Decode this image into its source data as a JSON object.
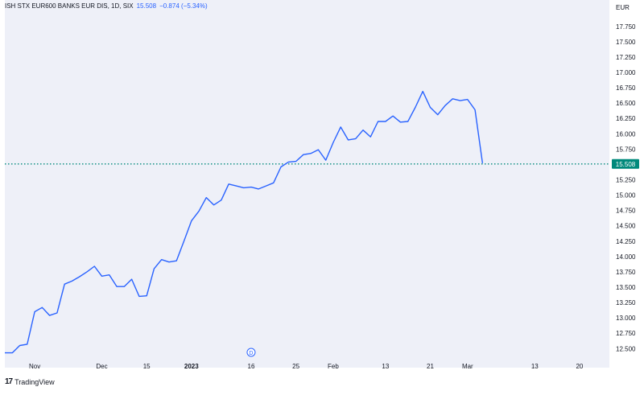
{
  "header": {
    "symbol": "ISH STX EUR600 BANKS EUR DIS, 1D, SIX",
    "last": "15.508",
    "change": "−0.874 (−5.34%)"
  },
  "currency": "EUR",
  "brand": "TradingView",
  "event_marker": "D",
  "colors": {
    "line": "#2962ff",
    "last_price_line": "#00897b",
    "last_price_badge": "#00897b",
    "plot_background": "#eef0f8",
    "axis_text": "#131722"
  },
  "chart_data": {
    "type": "line",
    "title": "ISH STX EUR600 BANKS EUR DIS, 1D, SIX",
    "ylabel": "EUR",
    "xlabel": "",
    "ylim": [
      12.32,
      17.97
    ],
    "grid": false,
    "y_ticks": [
      "12.500",
      "12.750",
      "13.000",
      "13.250",
      "13.500",
      "13.750",
      "14.000",
      "14.250",
      "14.500",
      "14.750",
      "15.000",
      "15.250",
      "15.500",
      "15.750",
      "16.000",
      "16.250",
      "16.500",
      "16.750",
      "17.000",
      "17.250",
      "17.500",
      "17.750"
    ],
    "x_ticks": [
      {
        "label": "Nov",
        "t": 4
      },
      {
        "label": "Dec",
        "t": 13
      },
      {
        "label": "15",
        "t": 19
      },
      {
        "label": "2023",
        "t": 25
      },
      {
        "label": "16",
        "t": 33
      },
      {
        "label": "25",
        "t": 39
      },
      {
        "label": "Feb",
        "t": 44
      },
      {
        "label": "13",
        "t": 51
      },
      {
        "label": "21",
        "t": 57
      },
      {
        "label": "Mar",
        "t": 62
      },
      {
        "label": "13",
        "t": 71
      },
      {
        "label": "20",
        "t": 77
      }
    ],
    "x_range": [
      0,
      81
    ],
    "series": [
      {
        "values": [
          [
            0,
            12.43
          ],
          [
            1,
            12.43
          ],
          [
            2,
            12.55
          ],
          [
            3,
            12.57
          ],
          [
            4,
            13.1
          ],
          [
            5,
            13.17
          ],
          [
            6,
            13.04
          ],
          [
            7,
            13.08
          ],
          [
            8,
            13.55
          ],
          [
            9,
            13.6
          ],
          [
            10,
            13.67
          ],
          [
            11,
            13.75
          ],
          [
            12,
            13.84
          ],
          [
            13,
            13.68
          ],
          [
            14,
            13.7
          ],
          [
            15,
            13.51
          ],
          [
            16,
            13.51
          ],
          [
            17,
            13.63
          ],
          [
            18,
            13.35
          ],
          [
            19,
            13.36
          ],
          [
            20,
            13.8
          ],
          [
            21,
            13.95
          ],
          [
            22,
            13.91
          ],
          [
            23,
            13.93
          ],
          [
            24,
            14.25
          ],
          [
            25,
            14.58
          ],
          [
            26,
            14.74
          ],
          [
            27,
            14.96
          ],
          [
            28,
            14.84
          ],
          [
            29,
            14.92
          ],
          [
            30,
            15.18
          ],
          [
            31,
            15.15
          ],
          [
            32,
            15.12
          ],
          [
            33,
            15.13
          ],
          [
            34,
            15.1
          ],
          [
            35,
            15.15
          ],
          [
            36,
            15.2
          ],
          [
            37,
            15.46
          ],
          [
            38,
            15.54
          ],
          [
            39,
            15.55
          ],
          [
            40,
            15.66
          ],
          [
            41,
            15.68
          ],
          [
            42,
            15.74
          ],
          [
            43,
            15.57
          ],
          [
            44,
            15.86
          ],
          [
            45,
            16.11
          ],
          [
            46,
            15.9
          ],
          [
            47,
            15.92
          ],
          [
            48,
            16.06
          ],
          [
            49,
            15.95
          ],
          [
            50,
            16.2
          ],
          [
            51,
            16.2
          ],
          [
            52,
            16.29
          ],
          [
            53,
            16.19
          ],
          [
            54,
            16.2
          ],
          [
            55,
            16.43
          ],
          [
            56,
            16.69
          ],
          [
            57,
            16.43
          ],
          [
            58,
            16.31
          ],
          [
            59,
            16.46
          ],
          [
            60,
            16.57
          ],
          [
            61,
            16.54
          ],
          [
            62,
            16.56
          ],
          [
            63,
            16.39
          ],
          [
            64,
            15.52
          ]
        ]
      }
    ],
    "last_value": 15.508,
    "last_value_label": "15.508"
  }
}
